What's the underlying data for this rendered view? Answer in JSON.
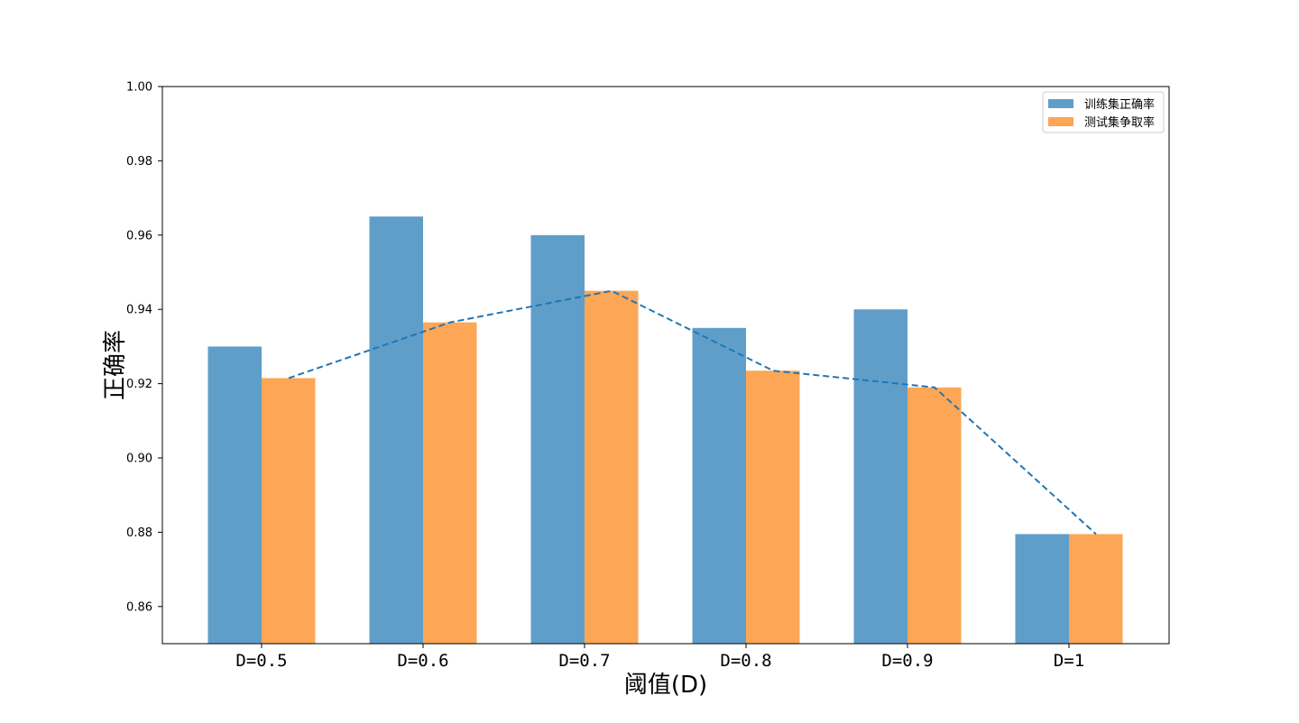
{
  "chart_data": {
    "type": "bar",
    "categories": [
      "D=0.5",
      "D=0.6",
      "D=0.7",
      "D=0.8",
      "D=0.9",
      "D=1"
    ],
    "series": [
      {
        "name": "训练集正确率",
        "values": [
          0.93,
          0.965,
          0.96,
          0.935,
          0.94,
          0.8795
        ],
        "color": "#5f9ec9"
      },
      {
        "name": "测试集争取率",
        "values": [
          0.9215,
          0.9365,
          0.945,
          0.9235,
          0.919,
          0.8795
        ],
        "color": "#fda655"
      }
    ],
    "line": {
      "values": [
        0.9215,
        0.9365,
        0.945,
        0.9235,
        0.919,
        0.8795
      ],
      "color": "#1f77b4",
      "style": "dashed"
    },
    "xlabel": "阈值(D)",
    "ylabel": "正确率",
    "ylim": [
      0.85,
      1.0
    ],
    "yticks": [
      "0.86",
      "0.88",
      "0.90",
      "0.92",
      "0.94",
      "0.96",
      "0.98",
      "1.00"
    ],
    "legend_position": "top-right",
    "grid": false
  }
}
